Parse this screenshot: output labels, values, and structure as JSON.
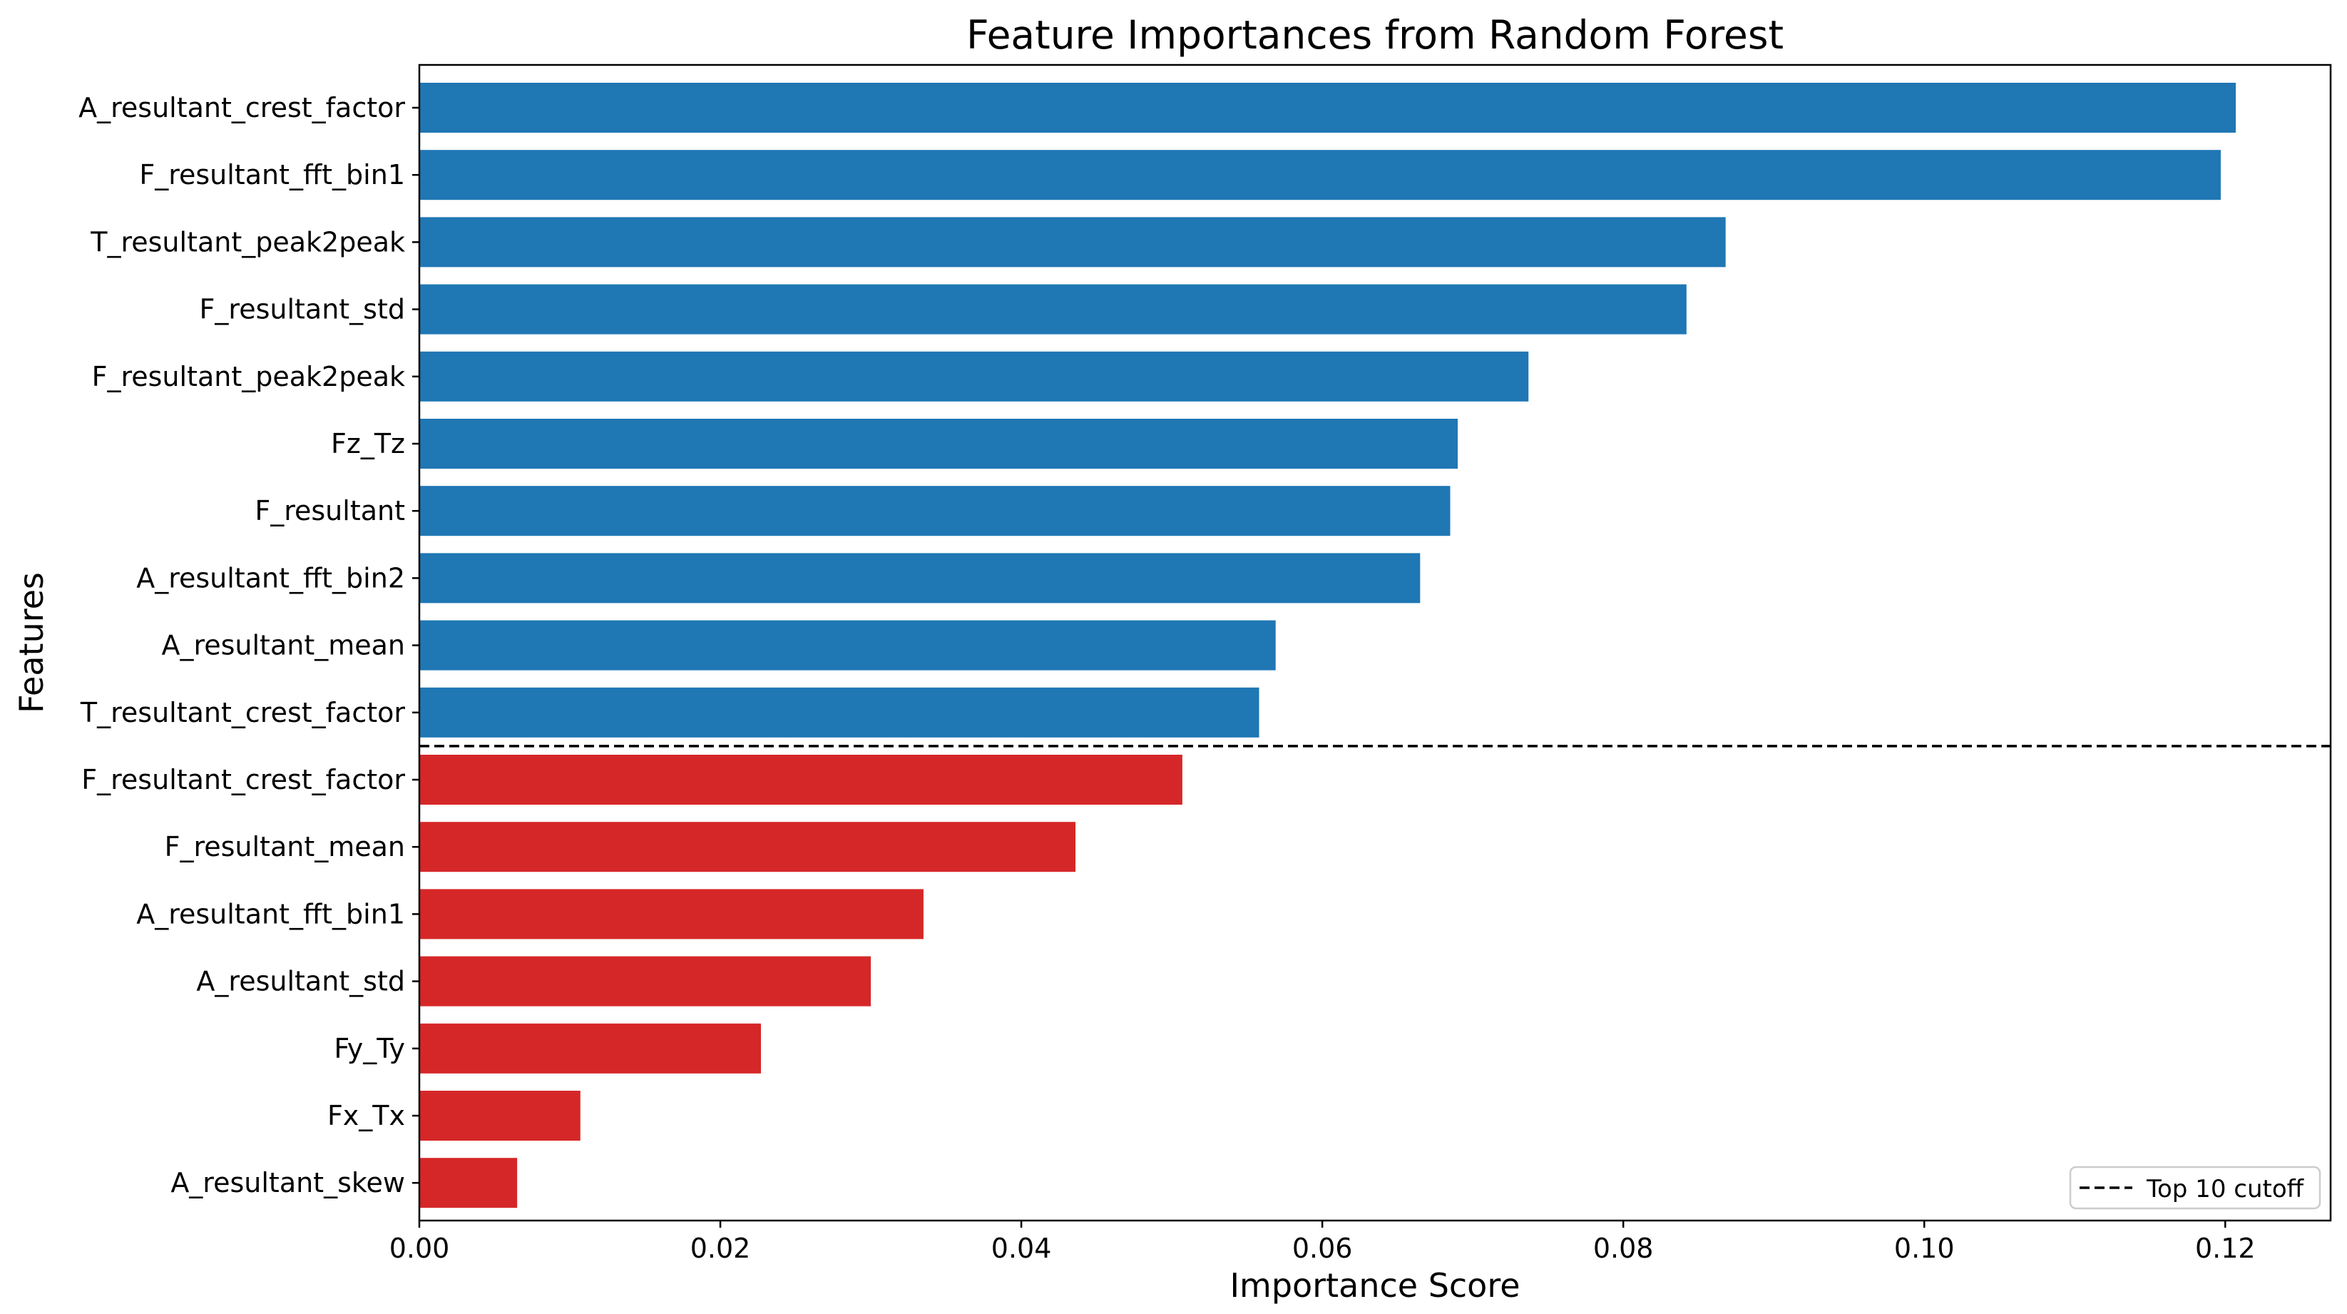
{
  "chart_data": {
    "type": "bar",
    "orientation": "horizontal",
    "title": "Feature Importances from Random Forest",
    "xlabel": "Importance Score",
    "ylabel": "Features",
    "xlim": [
      0,
      0.127
    ],
    "xticks": [
      0.0,
      0.02,
      0.04,
      0.06,
      0.08,
      0.1,
      0.12
    ],
    "xtick_labels": [
      "0.00",
      "0.02",
      "0.04",
      "0.06",
      "0.08",
      "0.10",
      "0.12"
    ],
    "grid": false,
    "categories": [
      "A_resultant_crest_factor",
      "F_resultant_fft_bin1",
      "T_resultant_peak2peak",
      "F_resultant_std",
      "F_resultant_peak2peak",
      "Fz_Tz",
      "F_resultant",
      "A_resultant_fft_bin2",
      "A_resultant_mean",
      "T_resultant_crest_factor",
      "F_resultant_crest_factor",
      "F_resultant_mean",
      "A_resultant_fft_bin1",
      "A_resultant_std",
      "Fy_Ty",
      "Fx_Tx",
      "A_resultant_skew"
    ],
    "values": [
      0.1207,
      0.1197,
      0.0868,
      0.0842,
      0.0737,
      0.069,
      0.0685,
      0.0665,
      0.0569,
      0.0558,
      0.0507,
      0.0436,
      0.0335,
      0.03,
      0.0227,
      0.0107,
      0.0065
    ],
    "top_n": 10,
    "colors": {
      "top": "#1f77b4",
      "rest": "#d62728",
      "cutoff": "#000000"
    },
    "cutoff_line": {
      "label": "Top 10 cutoff",
      "style": "dashed"
    },
    "legend": {
      "placement": "lower-right",
      "entries": [
        "Top 10 cutoff"
      ]
    }
  }
}
